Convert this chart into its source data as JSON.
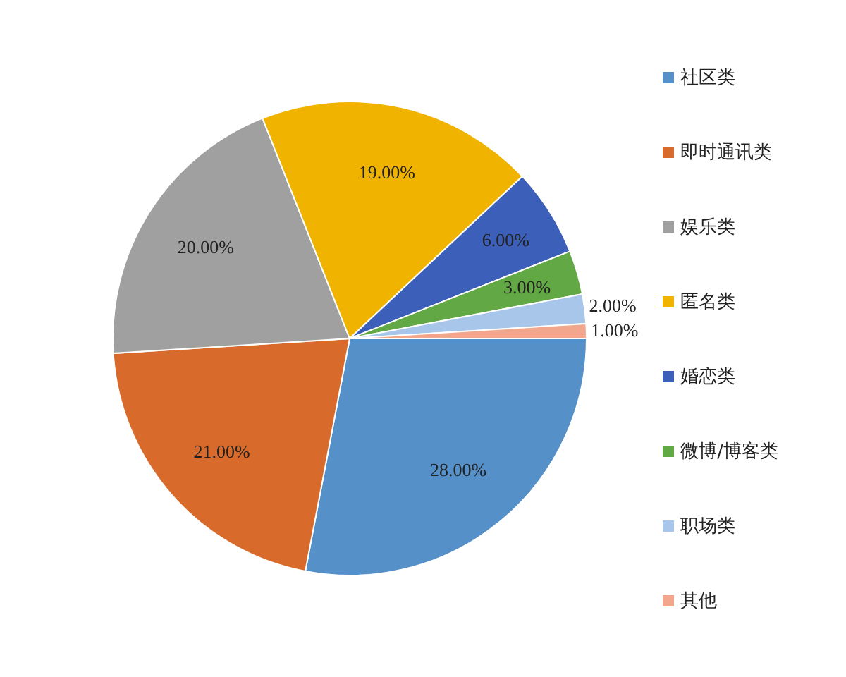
{
  "chart_data": {
    "type": "pie",
    "categories": [
      "社区类",
      "即时通讯类",
      "娱乐类",
      "匿名类",
      "婚恋类",
      "微博/博客类",
      "职场类",
      "其他"
    ],
    "values": [
      28,
      21,
      20,
      19,
      6,
      3,
      2,
      1
    ],
    "value_labels": [
      "28.00%",
      "21.00%",
      "20.00%",
      "19.00%",
      "6.00%",
      "3.00%",
      "2.00%",
      "1.00%"
    ],
    "colors": [
      "#5590c8",
      "#d86b2c",
      "#a0a0a0",
      "#f0b400",
      "#3c5fba",
      "#62a844",
      "#a8c5ea",
      "#f2a68b"
    ],
    "legend": "right"
  }
}
